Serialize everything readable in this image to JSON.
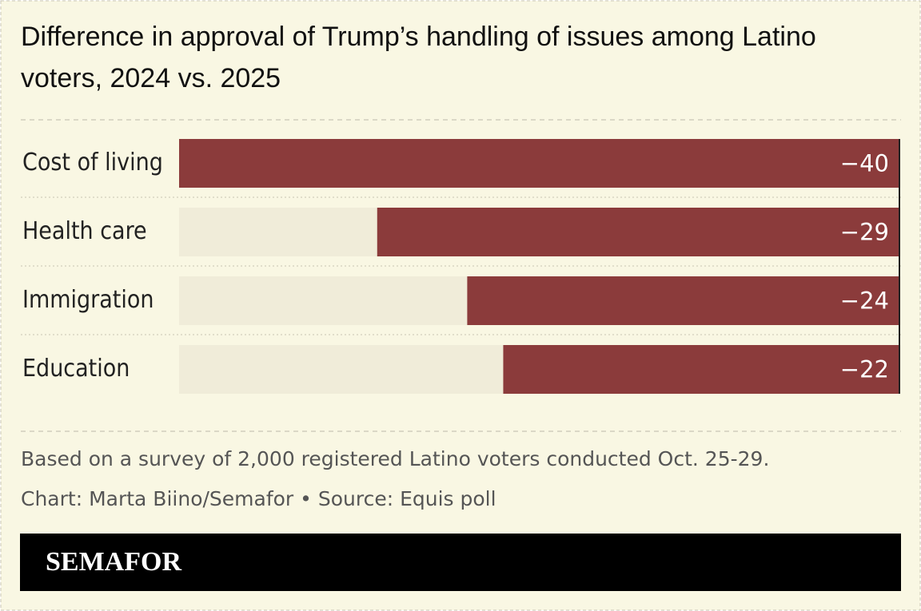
{
  "chart_data": {
    "type": "bar",
    "orientation": "horizontal",
    "title": "Difference in approval of Trump’s handling of issues among Latino voters, 2024 vs. 2025",
    "categories": [
      "Cost of living",
      "Health care",
      "Immigration",
      "Education"
    ],
    "values": [
      -40,
      -29,
      -24,
      -22
    ],
    "value_labels": [
      "−40",
      "−29",
      "−24",
      "−22"
    ],
    "color": "#8b3b3b",
    "xlim": [
      -40,
      0
    ],
    "note": "Based on a survey of 2,000 registered Latino voters conducted Oct. 25-29.",
    "source": "Chart: Marta Biino/Semafor • Source: Equis poll",
    "logo": "SEMAFOR"
  }
}
